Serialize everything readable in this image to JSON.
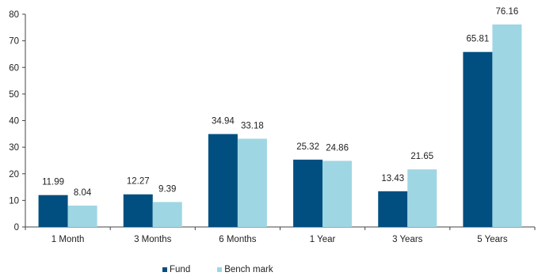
{
  "chart_data": {
    "type": "bar",
    "categories": [
      "1 Month",
      "3 Months",
      "6 Months",
      "1 Year",
      "3 Years",
      "5 Years"
    ],
    "series": [
      {
        "name": "Fund",
        "values": [
          11.99,
          12.27,
          34.94,
          25.32,
          13.43,
          65.81
        ],
        "color": "#004f80"
      },
      {
        "name": "Bench mark",
        "values": [
          8.04,
          9.39,
          33.18,
          24.86,
          21.65,
          76.16
        ],
        "color": "#9fd6e3"
      }
    ],
    "data_labels": [
      [
        "11.99",
        "12.27",
        "34.94",
        "25.32",
        "13.43",
        "65.81"
      ],
      [
        "8.04",
        "9.39",
        "33.18",
        "24.86",
        "21.65",
        "76.16"
      ]
    ],
    "ylim": [
      0,
      80
    ],
    "yticks": [
      0,
      10,
      20,
      30,
      40,
      50,
      60,
      70,
      80
    ],
    "grid": false,
    "legend_position": "bottom"
  }
}
